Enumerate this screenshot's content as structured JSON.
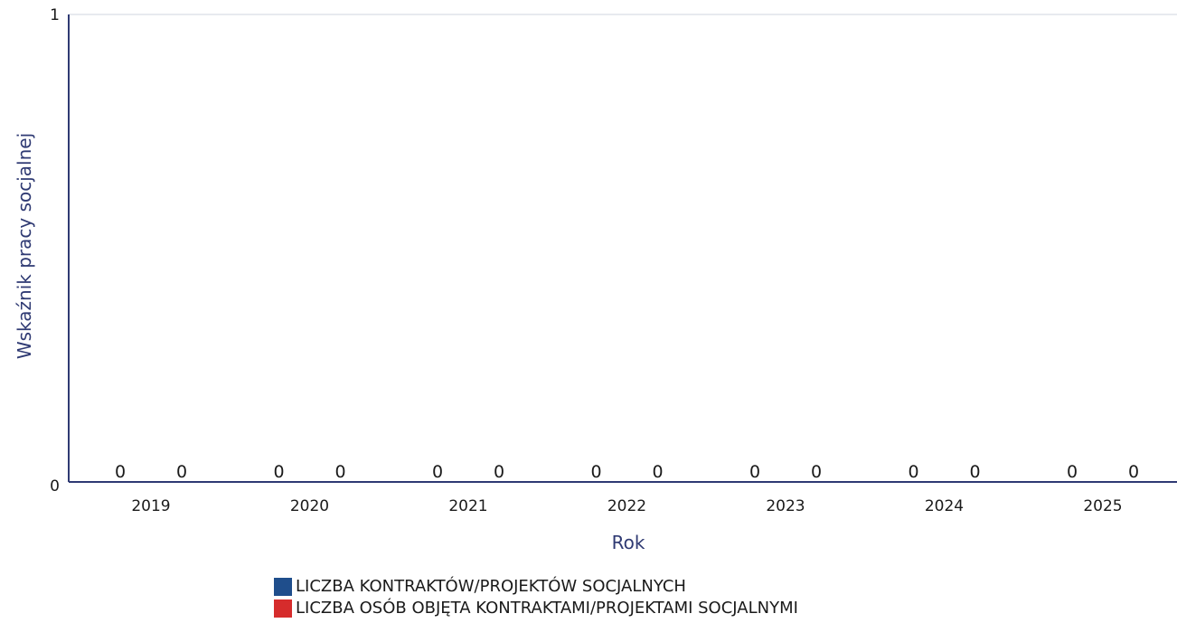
{
  "chart_data": {
    "type": "bar",
    "xlabel": "Rok",
    "ylabel": "Wskaźnik pracy socjalnej",
    "categories": [
      "2019",
      "2020",
      "2021",
      "2022",
      "2023",
      "2024",
      "2025"
    ],
    "ylim": [
      0,
      1
    ],
    "yticks": [
      "0",
      "1"
    ],
    "grid": false,
    "legend_position": "bottom",
    "series": [
      {
        "name": "LICZBA KONTRAKTÓW/PROJEKTÓW SOCJALNYCH",
        "color": "#1f4e8c",
        "values": [
          0,
          0,
          0,
          0,
          0,
          0,
          0
        ],
        "labels": [
          "0",
          "0",
          "0",
          "0",
          "0",
          "0",
          "0"
        ]
      },
      {
        "name": "LICZBA OSÓB OBJĘTA KONTRAKTAMI/PROJEKTAMI SOCJALNYMI",
        "color": "#d62c2c",
        "values": [
          0,
          0,
          0,
          0,
          0,
          0,
          0
        ],
        "labels": [
          "0",
          "0",
          "0",
          "0",
          "0",
          "0",
          "0"
        ]
      }
    ]
  }
}
